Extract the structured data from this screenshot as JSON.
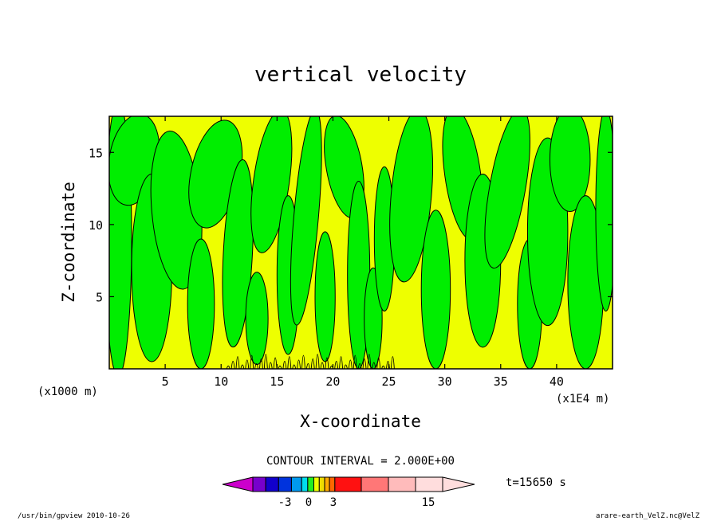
{
  "chart_data": {
    "type": "heatmap",
    "title": "vertical velocity",
    "xlabel": "X-coordinate",
    "ylabel": "Z-coordinate",
    "x_unit": "(x1E4 m)",
    "y_unit": "(x1000 m)",
    "xlim": [
      0,
      45
    ],
    "ylim": [
      0,
      17.5
    ],
    "x_ticks": [
      5,
      10,
      15,
      20,
      25,
      30,
      35,
      40
    ],
    "y_ticks": [
      5,
      10,
      15
    ],
    "colors": {
      "positive": "#eeff00",
      "negative": "#00ee00",
      "contour": "#000000"
    },
    "contour_interval_text": "CONTOUR INTERVAL = 2.000E+00",
    "time_label": "t=15650 s",
    "colorbar": {
      "colors": [
        "#cc00cc",
        "#7700cc",
        "#1100cc",
        "#0033dd",
        "#0099ee",
        "#00ddee",
        "#22ee22",
        "#eeff00",
        "#eedd00",
        "#ffaa00",
        "#ff6600",
        "#ff1111",
        "#ff7777",
        "#ffbbbb",
        "#ffdddd"
      ],
      "tick_labels": [
        "-3",
        "0",
        "3",
        "15"
      ]
    }
  },
  "footer": {
    "left": "/usr/bin/gpview  2010-10-26",
    "right": "arare-earth_VelZ.nc@VelZ"
  }
}
